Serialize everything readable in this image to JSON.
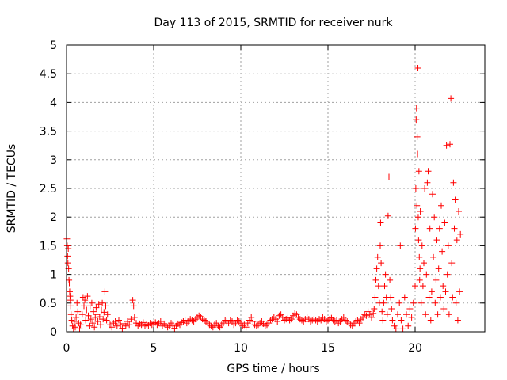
{
  "colors": {
    "marker": "#ff0000",
    "grid": "#a0a0a0",
    "axis": "#000000"
  },
  "chart_data": {
    "type": "scatter",
    "title": "Day 113 of 2015, SRMTID for receiver nurk",
    "xlabel": "GPS time / hours",
    "ylabel": "SRMTID / TECUs",
    "xlim": [
      0,
      24
    ],
    "ylim": [
      0,
      5
    ],
    "grid": true,
    "legend": "none",
    "marker": "plus",
    "xticks": [
      0,
      5,
      10,
      15,
      20
    ],
    "xtick_labels": [
      "0",
      "5",
      "10",
      "15",
      "20"
    ],
    "yticks": [
      0,
      0.5,
      1,
      1.5,
      2,
      2.5,
      3,
      3.5,
      4,
      4.5,
      5
    ],
    "ytick_labels": [
      "0",
      "0.5",
      "1",
      "1.5",
      "2",
      "2.5",
      "3",
      "3.5",
      "4",
      "4.5",
      "5"
    ],
    "series": [
      {
        "name": "SRMTID",
        "points": [
          [
            0.02,
            1.62
          ],
          [
            0.04,
            1.5
          ],
          [
            0.06,
            1.32
          ],
          [
            0.08,
            1.2
          ],
          [
            0.1,
            1.45
          ],
          [
            0.12,
            1.1
          ],
          [
            0.14,
            0.9
          ],
          [
            0.16,
            0.85
          ],
          [
            0.18,
            0.7
          ],
          [
            0.2,
            0.62
          ],
          [
            0.22,
            0.55
          ],
          [
            0.24,
            0.45
          ],
          [
            0.26,
            0.3
          ],
          [
            0.3,
            0.2
          ],
          [
            0.35,
            0.1
          ],
          [
            0.4,
            0.05
          ],
          [
            0.45,
            0.18
          ],
          [
            0.5,
            0.08
          ],
          [
            0.55,
            0.25
          ],
          [
            0.6,
            0.5
          ],
          [
            0.65,
            0.35
          ],
          [
            0.7,
            0.15
          ],
          [
            0.75,
            0.05
          ],
          [
            0.8,
            0.12
          ],
          [
            0.9,
            0.3
          ],
          [
            0.95,
            0.6
          ],
          [
            1.0,
            0.45
          ],
          [
            1.05,
            0.55
          ],
          [
            1.1,
            0.2
          ],
          [
            1.15,
            0.38
          ],
          [
            1.2,
            0.62
          ],
          [
            1.25,
            0.28
          ],
          [
            1.3,
            0.1
          ],
          [
            1.35,
            0.45
          ],
          [
            1.4,
            0.22
          ],
          [
            1.45,
            0.5
          ],
          [
            1.5,
            0.15
          ],
          [
            1.55,
            0.35
          ],
          [
            1.6,
            0.08
          ],
          [
            1.65,
            0.25
          ],
          [
            1.7,
            0.42
          ],
          [
            1.75,
            0.3
          ],
          [
            1.8,
            0.18
          ],
          [
            1.85,
            0.48
          ],
          [
            1.9,
            0.26
          ],
          [
            1.95,
            0.12
          ],
          [
            2.0,
            0.38
          ],
          [
            2.05,
            0.5
          ],
          [
            2.1,
            0.22
          ],
          [
            2.15,
            0.34
          ],
          [
            2.2,
            0.7
          ],
          [
            2.25,
            0.45
          ],
          [
            2.3,
            0.2
          ],
          [
            2.35,
            0.3
          ],
          [
            2.5,
            0.12
          ],
          [
            2.6,
            0.08
          ],
          [
            2.7,
            0.15
          ],
          [
            2.8,
            0.18
          ],
          [
            2.9,
            0.1
          ],
          [
            3.0,
            0.2
          ],
          [
            3.1,
            0.12
          ],
          [
            3.2,
            0.06
          ],
          [
            3.3,
            0.14
          ],
          [
            3.4,
            0.1
          ],
          [
            3.5,
            0.18
          ],
          [
            3.6,
            0.12
          ],
          [
            3.7,
            0.22
          ],
          [
            3.75,
            0.38
          ],
          [
            3.8,
            0.55
          ],
          [
            3.85,
            0.45
          ],
          [
            3.9,
            0.25
          ],
          [
            4.0,
            0.15
          ],
          [
            4.1,
            0.1
          ],
          [
            4.2,
            0.14
          ],
          [
            4.3,
            0.12
          ],
          [
            4.4,
            0.16
          ],
          [
            4.5,
            0.1
          ],
          [
            4.6,
            0.13
          ],
          [
            4.7,
            0.11
          ],
          [
            4.8,
            0.15
          ],
          [
            4.9,
            0.12
          ],
          [
            5.0,
            0.14
          ],
          [
            5.1,
            0.16
          ],
          [
            5.2,
            0.12
          ],
          [
            5.3,
            0.15
          ],
          [
            5.4,
            0.18
          ],
          [
            5.5,
            0.1
          ],
          [
            5.6,
            0.14
          ],
          [
            5.7,
            0.12
          ],
          [
            5.8,
            0.08
          ],
          [
            5.9,
            0.1
          ],
          [
            6.0,
            0.15
          ],
          [
            6.1,
            0.12
          ],
          [
            6.2,
            0.06
          ],
          [
            6.3,
            0.1
          ],
          [
            6.4,
            0.14
          ],
          [
            6.5,
            0.12
          ],
          [
            6.6,
            0.16
          ],
          [
            6.7,
            0.18
          ],
          [
            6.8,
            0.2
          ],
          [
            6.9,
            0.15
          ],
          [
            7.0,
            0.18
          ],
          [
            7.1,
            0.22
          ],
          [
            7.2,
            0.2
          ],
          [
            7.3,
            0.18
          ],
          [
            7.4,
            0.22
          ],
          [
            7.5,
            0.25
          ],
          [
            7.6,
            0.28
          ],
          [
            7.7,
            0.26
          ],
          [
            7.8,
            0.22
          ],
          [
            7.9,
            0.2
          ],
          [
            8.0,
            0.18
          ],
          [
            8.1,
            0.15
          ],
          [
            8.2,
            0.12
          ],
          [
            8.3,
            0.1
          ],
          [
            8.4,
            0.08
          ],
          [
            8.5,
            0.12
          ],
          [
            8.6,
            0.15
          ],
          [
            8.7,
            0.1
          ],
          [
            8.8,
            0.08
          ],
          [
            8.9,
            0.12
          ],
          [
            9.0,
            0.15
          ],
          [
            9.1,
            0.2
          ],
          [
            9.2,
            0.18
          ],
          [
            9.3,
            0.15
          ],
          [
            9.4,
            0.2
          ],
          [
            9.5,
            0.18
          ],
          [
            9.6,
            0.12
          ],
          [
            9.7,
            0.15
          ],
          [
            9.8,
            0.2
          ],
          [
            9.9,
            0.18
          ],
          [
            10.0,
            0.15
          ],
          [
            10.1,
            0.1
          ],
          [
            10.2,
            0.12
          ],
          [
            10.3,
            0.08
          ],
          [
            10.4,
            0.15
          ],
          [
            10.5,
            0.2
          ],
          [
            10.6,
            0.25
          ],
          [
            10.7,
            0.18
          ],
          [
            10.8,
            0.12
          ],
          [
            10.9,
            0.1
          ],
          [
            11.0,
            0.12
          ],
          [
            11.1,
            0.15
          ],
          [
            11.2,
            0.18
          ],
          [
            11.3,
            0.14
          ],
          [
            11.4,
            0.1
          ],
          [
            11.5,
            0.12
          ],
          [
            11.6,
            0.15
          ],
          [
            11.7,
            0.2
          ],
          [
            11.8,
            0.22
          ],
          [
            11.9,
            0.25
          ],
          [
            12.0,
            0.22
          ],
          [
            12.1,
            0.18
          ],
          [
            12.2,
            0.28
          ],
          [
            12.3,
            0.3
          ],
          [
            12.4,
            0.25
          ],
          [
            12.5,
            0.2
          ],
          [
            12.6,
            0.22
          ],
          [
            12.7,
            0.24
          ],
          [
            12.8,
            0.2
          ],
          [
            12.9,
            0.22
          ],
          [
            13.0,
            0.28
          ],
          [
            13.1,
            0.32
          ],
          [
            13.2,
            0.3
          ],
          [
            13.3,
            0.25
          ],
          [
            13.4,
            0.22
          ],
          [
            13.5,
            0.2
          ],
          [
            13.6,
            0.18
          ],
          [
            13.7,
            0.22
          ],
          [
            13.8,
            0.25
          ],
          [
            13.9,
            0.22
          ],
          [
            14.0,
            0.18
          ],
          [
            14.1,
            0.2
          ],
          [
            14.2,
            0.22
          ],
          [
            14.3,
            0.2
          ],
          [
            14.4,
            0.18
          ],
          [
            14.5,
            0.22
          ],
          [
            14.6,
            0.2
          ],
          [
            14.7,
            0.25
          ],
          [
            14.8,
            0.22
          ],
          [
            14.9,
            0.18
          ],
          [
            15.0,
            0.2
          ],
          [
            15.1,
            0.22
          ],
          [
            15.2,
            0.24
          ],
          [
            15.3,
            0.2
          ],
          [
            15.4,
            0.18
          ],
          [
            15.5,
            0.2
          ],
          [
            15.6,
            0.15
          ],
          [
            15.7,
            0.18
          ],
          [
            15.8,
            0.22
          ],
          [
            15.9,
            0.25
          ],
          [
            16.0,
            0.2
          ],
          [
            16.1,
            0.18
          ],
          [
            16.2,
            0.15
          ],
          [
            16.3,
            0.12
          ],
          [
            16.4,
            0.1
          ],
          [
            16.5,
            0.15
          ],
          [
            16.6,
            0.18
          ],
          [
            16.7,
            0.2
          ],
          [
            16.8,
            0.15
          ],
          [
            16.9,
            0.22
          ],
          [
            17.0,
            0.25
          ],
          [
            17.1,
            0.3
          ],
          [
            17.2,
            0.28
          ],
          [
            17.3,
            0.35
          ],
          [
            17.4,
            0.3
          ],
          [
            17.5,
            0.25
          ],
          [
            17.6,
            0.32
          ],
          [
            17.65,
            0.4
          ],
          [
            17.7,
            0.6
          ],
          [
            17.75,
            0.9
          ],
          [
            17.8,
            1.1
          ],
          [
            17.85,
            1.3
          ],
          [
            17.9,
            0.8
          ],
          [
            17.95,
            0.5
          ],
          [
            18.0,
            1.5
          ],
          [
            18.02,
            1.9
          ],
          [
            18.05,
            1.2
          ],
          [
            18.1,
            0.35
          ],
          [
            18.15,
            0.2
          ],
          [
            18.2,
            0.5
          ],
          [
            18.25,
            0.8
          ],
          [
            18.3,
            1.0
          ],
          [
            18.35,
            0.6
          ],
          [
            18.4,
            0.3
          ],
          [
            18.45,
            2.02
          ],
          [
            18.5,
            2.7
          ],
          [
            18.55,
            0.9
          ],
          [
            18.6,
            0.6
          ],
          [
            18.65,
            0.4
          ],
          [
            18.7,
            0.2
          ],
          [
            18.8,
            0.1
          ],
          [
            18.9,
            0.05
          ],
          [
            19.0,
            0.3
          ],
          [
            19.1,
            0.5
          ],
          [
            19.15,
            1.5
          ],
          [
            19.2,
            0.2
          ],
          [
            19.3,
            0.05
          ],
          [
            19.4,
            0.6
          ],
          [
            19.5,
            0.3
          ],
          [
            19.6,
            0.1
          ],
          [
            19.7,
            0.4
          ],
          [
            19.8,
            0.25
          ],
          [
            19.9,
            0.5
          ],
          [
            20.0,
            0.8
          ],
          [
            20.02,
            1.8
          ],
          [
            20.04,
            2.5
          ],
          [
            20.06,
            3.7
          ],
          [
            20.08,
            3.9
          ],
          [
            20.1,
            2.2
          ],
          [
            20.12,
            3.4
          ],
          [
            20.14,
            3.1
          ],
          [
            20.16,
            4.6
          ],
          [
            20.18,
            2.0
          ],
          [
            20.2,
            1.6
          ],
          [
            20.22,
            2.8
          ],
          [
            20.24,
            1.3
          ],
          [
            20.26,
            0.9
          ],
          [
            20.28,
            1.1
          ],
          [
            20.3,
            2.1
          ],
          [
            20.35,
            0.5
          ],
          [
            20.4,
            1.5
          ],
          [
            20.45,
            0.8
          ],
          [
            20.5,
            1.2
          ],
          [
            20.55,
            2.5
          ],
          [
            20.6,
            0.3
          ],
          [
            20.65,
            1.0
          ],
          [
            20.7,
            2.6
          ],
          [
            20.75,
            2.8
          ],
          [
            20.8,
            0.6
          ],
          [
            20.85,
            1.8
          ],
          [
            20.9,
            0.2
          ],
          [
            20.95,
            0.7
          ],
          [
            21.0,
            2.4
          ],
          [
            21.05,
            1.3
          ],
          [
            21.1,
            2.0
          ],
          [
            21.15,
            0.5
          ],
          [
            21.2,
            0.9
          ],
          [
            21.25,
            1.6
          ],
          [
            21.3,
            0.3
          ],
          [
            21.35,
            1.1
          ],
          [
            21.4,
            1.8
          ],
          [
            21.45,
            0.6
          ],
          [
            21.5,
            2.2
          ],
          [
            21.55,
            1.4
          ],
          [
            21.6,
            0.8
          ],
          [
            21.65,
            0.4
          ],
          [
            21.7,
            1.9
          ],
          [
            21.75,
            0.7
          ],
          [
            21.8,
            3.25
          ],
          [
            21.85,
            1.0
          ],
          [
            21.9,
            1.5
          ],
          [
            21.95,
            0.3
          ],
          [
            22.0,
            3.27
          ],
          [
            22.05,
            4.07
          ],
          [
            22.1,
            1.2
          ],
          [
            22.15,
            0.6
          ],
          [
            22.2,
            2.6
          ],
          [
            22.25,
            1.8
          ],
          [
            22.3,
            2.3
          ],
          [
            22.35,
            0.5
          ],
          [
            22.4,
            1.6
          ],
          [
            22.45,
            0.2
          ],
          [
            22.5,
            2.1
          ],
          [
            22.55,
            0.7
          ],
          [
            22.6,
            1.7
          ]
        ]
      }
    ]
  }
}
